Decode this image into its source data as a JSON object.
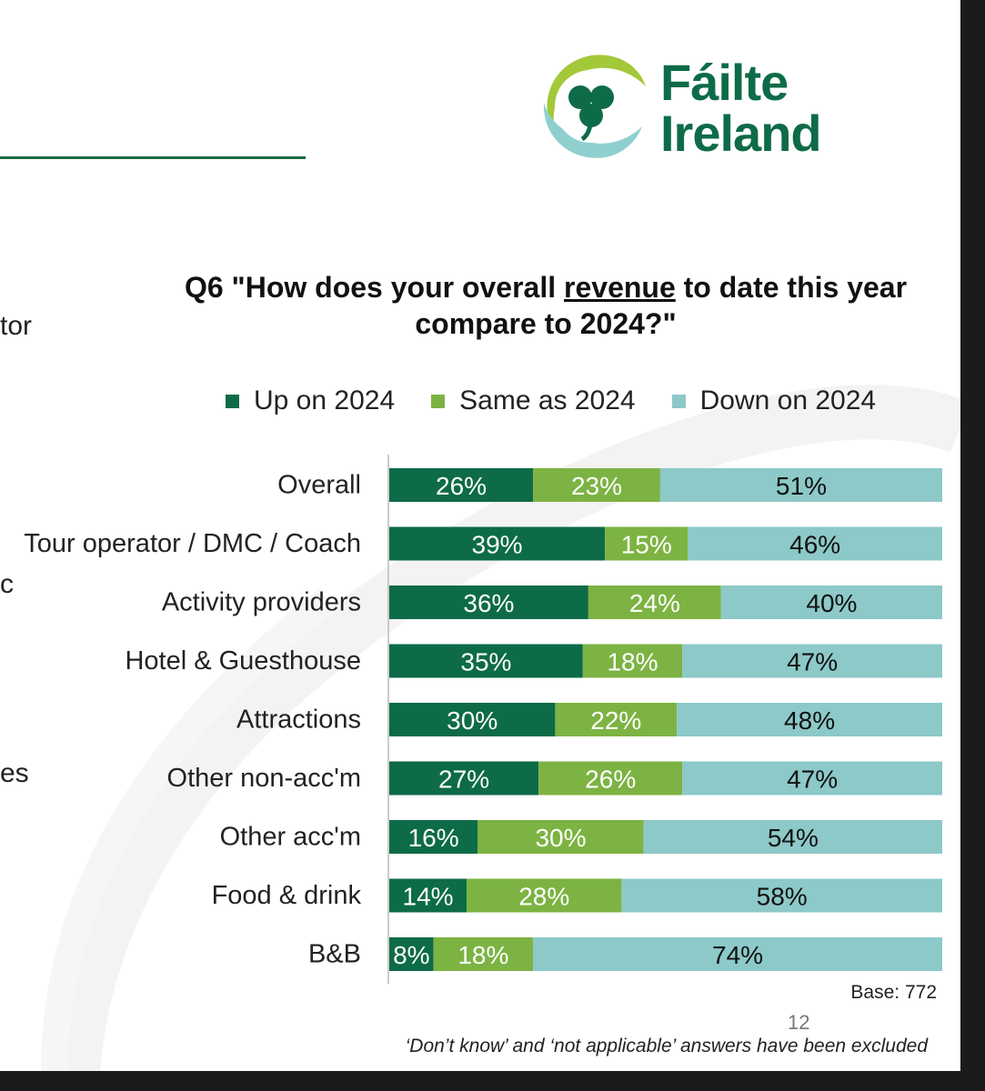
{
  "edge_text": [
    "tor",
    "c",
    "es"
  ],
  "logo": {
    "line1": "Fáilte",
    "line2": "Ireland"
  },
  "colors": {
    "up": "#0d6b47",
    "same": "#7cb342",
    "down": "#8cc9c8",
    "brand": "#0e6b48"
  },
  "chart_data": {
    "type": "bar",
    "orientation": "horizontal",
    "stacked": true,
    "title": {
      "pre": "Q6 \"How does your overall ",
      "emphasis": "revenue",
      "post": " to date this year compare to 2024?\""
    },
    "categories": [
      "Overall",
      "Tour operator / DMC / Coach",
      "Activity providers",
      "Hotel & Guesthouse",
      "Attractions",
      "Other non-acc'm",
      "Other acc'm",
      "Food & drink",
      "B&B"
    ],
    "series": [
      {
        "name": "Up on 2024",
        "values": [
          26,
          39,
          36,
          35,
          30,
          27,
          16,
          14,
          8
        ]
      },
      {
        "name": "Same as 2024",
        "values": [
          23,
          15,
          24,
          18,
          22,
          26,
          30,
          28,
          18
        ]
      },
      {
        "name": "Down on 2024",
        "values": [
          51,
          46,
          40,
          47,
          48,
          47,
          54,
          58,
          74
        ]
      }
    ],
    "value_suffix": "%",
    "xlim": [
      0,
      100
    ],
    "legend": "top",
    "base": "Base: 772",
    "footnote": "‘Don’t know’ and ‘not applicable’ answers have been excluded"
  },
  "page_number": "12"
}
